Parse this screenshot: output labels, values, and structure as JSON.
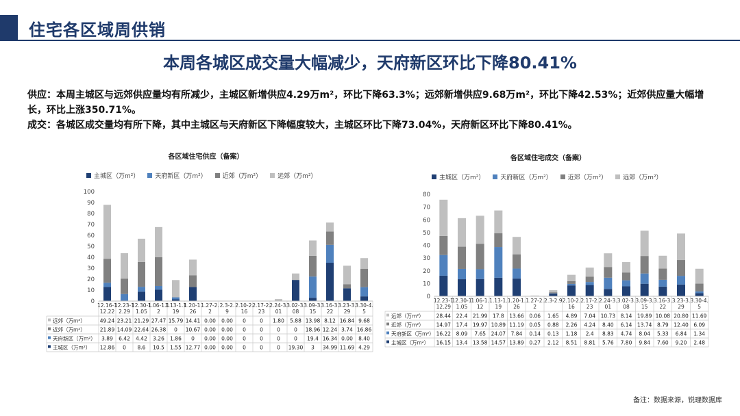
{
  "header": {
    "page_title": "住宅各区域周供销",
    "headline": "本周各城区成交量大幅减少，天府新区环比下降80.41%"
  },
  "summary": {
    "supply": "供应：本周主城区与远郊供应量均有所减少，主城区新增供应4.29万m²，环比下降63.3%；远郊新增供应9.68万m²，环比下降42.53%；近郊供应量大幅增长，环比上涨350.71%。",
    "deal": "成交：各城区成交量均有所下降，其中主城区与天府新区下降幅度较大，主城区环比下降73.04%，天府新区环比下降80.41%。"
  },
  "colors": {
    "brand": "#1f3a6b",
    "series": [
      "#1f3f73",
      "#4f81bd",
      "#808080",
      "#bfbfbf"
    ]
  },
  "footnote": "备注：数据来源，锐理数据库",
  "chart_data": [
    {
      "type": "bar",
      "stacked": true,
      "title": "各区域住宅供应（备案）",
      "ylim": [
        0,
        100
      ],
      "yticks": [
        0,
        10,
        20,
        30,
        40,
        50,
        60,
        70,
        80,
        90,
        100
      ],
      "grid": false,
      "legend": "top",
      "categories": [
        [
          "12.16-1",
          "12.22"
        ],
        [
          "12.23-1",
          "2.29"
        ],
        [
          "12.30-1",
          "1.05"
        ],
        [
          "1.06-1.1",
          "2"
        ],
        [
          "1.13-1.1",
          "19"
        ],
        [
          "1.20-1.",
          "26"
        ],
        [
          "1.27-2.",
          "2"
        ],
        [
          "2.3-2.",
          "9"
        ],
        [
          "2.10-2.",
          "16"
        ],
        [
          "2.17-2.",
          "23"
        ],
        [
          "2.24-3.",
          "01"
        ],
        [
          "3.02-3.",
          "08"
        ],
        [
          "3.09-3.",
          "15"
        ],
        [
          "3.16-3.",
          "22"
        ],
        [
          "3.23-3.",
          "29"
        ],
        [
          "3.30-4.",
          "5"
        ]
      ],
      "series": [
        {
          "name": "主城区（万m²）",
          "table_label": "主城区（万m²）",
          "values": [
            12.86,
            0,
            8.6,
            10.5,
            1.55,
            12.77,
            0.0,
            0.0,
            0,
            0,
            0,
            19.3,
            3,
            34.99,
            11.69,
            4.29
          ],
          "display": [
            "12.86",
            "0",
            "8.6",
            "10.5",
            "1.55",
            "12.77",
            "0.00",
            "0.00",
            "0",
            "0",
            "0",
            "19.30",
            "3",
            "34.99",
            "11.69",
            "4.29"
          ]
        },
        {
          "name": "天府新区（万m²）",
          "table_label": "天府新区（万m²）",
          "values": [
            3.89,
            6.42,
            4.42,
            3.26,
            1.86,
            0,
            0.0,
            0.0,
            0,
            0,
            0,
            0,
            19.4,
            16.34,
            0.0,
            8.4
          ],
          "display": [
            "3.89",
            "6.42",
            "4.42",
            "3.26",
            "1.86",
            "0",
            "0.00",
            "0.00",
            "0",
            "0",
            "0",
            "0",
            "19.4",
            "16.34",
            "0.00",
            "8.40"
          ]
        },
        {
          "name": "近郊（万m²）",
          "table_label": "近郊（万m²）",
          "values": [
            21.89,
            14.09,
            22.64,
            26.38,
            0,
            10.67,
            0.0,
            0.0,
            0,
            0,
            0,
            0,
            18.96,
            12.24,
            3.74,
            16.86
          ],
          "display": [
            "21.89",
            "14.09",
            "22.64",
            "26.38",
            "0",
            "10.67",
            "0.00",
            "0.00",
            "0",
            "0",
            "0",
            "0",
            "18.96",
            "12.24",
            "3.74",
            "16.86"
          ]
        },
        {
          "name": "远郊（万m²）",
          "table_label": "远郊（万m²）",
          "values": [
            49.24,
            23.21,
            21.29,
            27.47,
            15.79,
            14.41,
            0.0,
            0.0,
            0,
            0,
            1.8,
            5.88,
            13.98,
            8.12,
            16.84,
            9.68
          ],
          "display": [
            "49.24",
            "23.21",
            "21.29",
            "27.47",
            "15.79",
            "14.41",
            "0.00",
            "0.00",
            "0",
            "0",
            "1.80",
            "5.88",
            "13.98",
            "8.12",
            "16.84",
            "9.68"
          ]
        }
      ]
    },
    {
      "type": "bar",
      "stacked": true,
      "title": "各区域住宅成交（备案）",
      "ylim": [
        0,
        80
      ],
      "yticks": [
        0,
        10,
        20,
        30,
        40,
        50,
        60,
        70,
        80
      ],
      "grid": false,
      "legend": "top",
      "categories": [
        [
          "12.23-1",
          "12.29"
        ],
        [
          "12.30-1",
          "1.05"
        ],
        [
          "1.06-1.",
          "12"
        ],
        [
          "1.13-1.",
          "19"
        ],
        [
          "1.20-1.",
          "26"
        ],
        [
          "1.27-2.",
          "2"
        ],
        [
          "2.3-2.9",
          ""
        ],
        [
          "2.10-2.",
          "16"
        ],
        [
          "2.17-2.",
          "23"
        ],
        [
          "2.24-3.",
          "01"
        ],
        [
          "3.02-3.",
          "08"
        ],
        [
          "3.09-3.",
          "15"
        ],
        [
          "3.16-3.",
          "22"
        ],
        [
          "3.23-3.",
          "29"
        ],
        [
          "3.30-4.",
          "5"
        ]
      ],
      "series": [
        {
          "name": "主城区（万m²）",
          "table_label": "主城区（万m²）",
          "values": [
            16.15,
            13.4,
            13.58,
            14.57,
            13.89,
            0.27,
            2.12,
            8.51,
            8.81,
            5.76,
            7.8,
            9.84,
            7.6,
            9.2,
            2.48
          ],
          "display": [
            "16.15",
            "13.4",
            "13.58",
            "14.57",
            "13.89",
            "0.27",
            "2.12",
            "8.51",
            "8.81",
            "5.76",
            "7.80",
            "9.84",
            "7.60",
            "9.20",
            "2.48"
          ]
        },
        {
          "name": "天府新区（万m²）",
          "table_label": "天府新区（万m²）",
          "values": [
            16.22,
            8.09,
            7.65,
            24.07,
            7.84,
            0.14,
            0.13,
            1.18,
            2.4,
            8.83,
            4.74,
            8.04,
            5.33,
            6.84,
            1.34
          ],
          "display": [
            "16.22",
            "8.09",
            "7.65",
            "24.07",
            "7.84",
            "0.14",
            "0.13",
            "1.18",
            "2.4",
            "8.83",
            "4.74",
            "8.04",
            "5.33",
            "6.84",
            "1.34"
          ]
        },
        {
          "name": "近郊（万m²）",
          "table_label": "近郊（万m²）",
          "values": [
            14.97,
            17.4,
            19.97,
            10.89,
            11.19,
            0.05,
            0.88,
            2.26,
            4.24,
            8.4,
            6.14,
            13.74,
            8.79,
            12.4,
            6.09
          ],
          "display": [
            "14.97",
            "17.4",
            "19.97",
            "10.89",
            "11.19",
            "0.05",
            "0.88",
            "2.26",
            "4.24",
            "8.40",
            "6.14",
            "13.74",
            "8.79",
            "12.40",
            "6.09"
          ]
        },
        {
          "name": "远郊（万m²）",
          "table_label": "远郊（万m²）",
          "values": [
            28.44,
            22.4,
            21.99,
            17.8,
            13.66,
            0.06,
            1.65,
            4.89,
            7.04,
            10.73,
            8.14,
            19.89,
            10.08,
            20.8,
            11.69
          ],
          "display": [
            "28.44",
            "22.4",
            "21.99",
            "17.8",
            "13.66",
            "0.06",
            "1.65",
            "4.89",
            "7.04",
            "10.73",
            "8.14",
            "19.89",
            "10.08",
            "20.80",
            "11.69"
          ]
        }
      ]
    }
  ]
}
